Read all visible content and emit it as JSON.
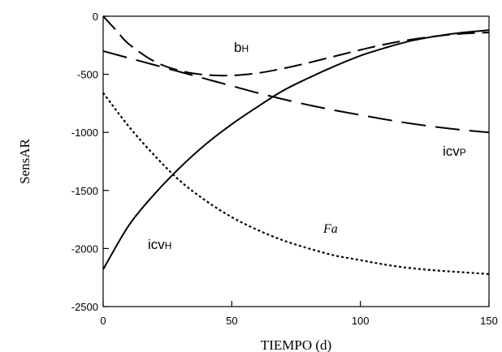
{
  "chart_data": {
    "type": "line",
    "title": "",
    "xlabel": "TIEMPO (d)",
    "ylabel": "SensAR",
    "xlim": [
      0,
      150
    ],
    "ylim": [
      -2500,
      0
    ],
    "xticks": [
      "0",
      "50",
      "100",
      "150"
    ],
    "yticks": [
      "0",
      "-500",
      "-1000",
      "-1500",
      "-2000",
      "-2500"
    ],
    "grid": false,
    "legend": "none",
    "series": [
      {
        "label_main": "b",
        "label_sub": "H",
        "style": "long-dash",
        "color": "#000000",
        "x": [
          0,
          5,
          10,
          20,
          30,
          40,
          50,
          60,
          70,
          80,
          90,
          100,
          110,
          120,
          130,
          140,
          150
        ],
        "y": [
          0,
          -120,
          -240,
          -390,
          -470,
          -505,
          -510,
          -490,
          -450,
          -400,
          -345,
          -290,
          -240,
          -200,
          -170,
          -150,
          -140
        ]
      },
      {
        "label_main": "icv",
        "label_sub": "P",
        "style": "dash",
        "color": "#000000",
        "x": [
          0,
          10,
          20,
          30,
          40,
          50,
          60,
          70,
          80,
          90,
          100,
          110,
          120,
          130,
          140,
          150
        ],
        "y": [
          -300,
          -360,
          -420,
          -480,
          -540,
          -600,
          -660,
          -715,
          -765,
          -810,
          -850,
          -890,
          -925,
          -955,
          -980,
          -1000
        ]
      },
      {
        "label_main": "icv",
        "label_sub": "H",
        "style": "solid",
        "color": "#000000",
        "x": [
          0,
          10,
          20,
          30,
          40,
          50,
          60,
          70,
          80,
          90,
          100,
          110,
          120,
          130,
          140,
          150
        ],
        "y": [
          -2180,
          -1800,
          -1530,
          -1300,
          -1100,
          -930,
          -780,
          -640,
          -530,
          -430,
          -340,
          -270,
          -210,
          -170,
          -140,
          -120
        ]
      },
      {
        "label_main": "Fa",
        "label_sub": "",
        "style": "dotted",
        "color": "#000000",
        "x": [
          0,
          10,
          20,
          30,
          40,
          50,
          60,
          70,
          80,
          90,
          100,
          110,
          120,
          130,
          140,
          150
        ],
        "y": [
          -660,
          -950,
          -1200,
          -1420,
          -1590,
          -1730,
          -1840,
          -1930,
          -2000,
          -2060,
          -2100,
          -2140,
          -2170,
          -2190,
          -2205,
          -2220
        ]
      }
    ]
  }
}
